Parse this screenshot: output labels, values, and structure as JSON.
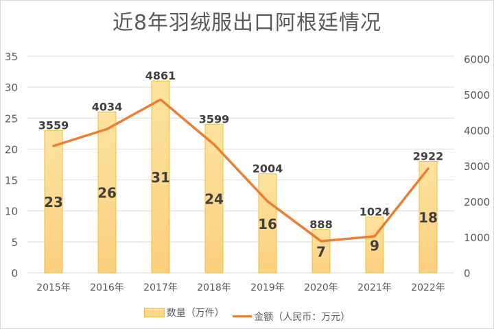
{
  "title": "近8年羽绒服出口阿根廷情况",
  "legend": {
    "bar_label": "数量（万件）",
    "line_label": "金额（人民币：万元）"
  },
  "colors": {
    "bar_fill_top": "#fde3a0",
    "bar_fill_bottom": "#fbcf7e",
    "bar_border": "#f2c038",
    "line": "#ed7d31",
    "grid": "#d9d9d9",
    "axis_text": "#595959",
    "label_text": "#404040"
  },
  "chart_data": {
    "type": "bar+line",
    "title": "近8年羽绒服出口阿根廷情况",
    "categories": [
      "2015年",
      "2016年",
      "2017年",
      "2018年",
      "2019年",
      "2020年",
      "2021年",
      "2022年"
    ],
    "series": [
      {
        "name": "数量（万件）",
        "type": "bar",
        "axis": "left",
        "values": [
          23,
          26,
          31,
          24,
          16,
          7,
          9,
          18
        ]
      },
      {
        "name": "金额（人民币：万元）",
        "type": "line",
        "axis": "right",
        "values": [
          3559,
          4034,
          4861,
          3599,
          2004,
          888,
          1024,
          2922
        ]
      }
    ],
    "left_axis": {
      "min": 0,
      "max": 35,
      "step": 5,
      "ticks": [
        "0",
        "5",
        "10",
        "15",
        "20",
        "25",
        "30",
        "35"
      ]
    },
    "right_axis": {
      "min": 0,
      "max": 6000,
      "step": 1000,
      "ticks": [
        "0",
        "1000",
        "2000",
        "3000",
        "4000",
        "5000",
        "6000"
      ]
    },
    "grid": true,
    "legend_position": "bottom",
    "xlabel": "",
    "ylabel": ""
  }
}
